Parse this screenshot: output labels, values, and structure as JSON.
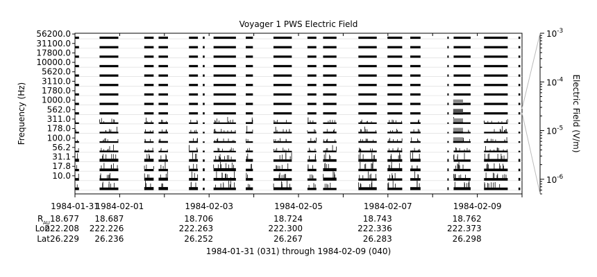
{
  "chart_data": {
    "type": "heatmap",
    "title": "Voyager 1 PWS Electric Field",
    "ylabel": "Frequency (Hz)",
    "colorbar_label": "Electric Field (V/m)",
    "colorbar_scale": "log",
    "colorbar_range": [
      5e-07,
      0.001
    ],
    "colorbar_ticks": [
      {
        "value": 1e-06,
        "mant": "10",
        "exp": "-6"
      },
      {
        "value": 1e-05,
        "mant": "10",
        "exp": "-5"
      },
      {
        "value": 0.0001,
        "mant": "10",
        "exp": "-4"
      },
      {
        "value": 0.001,
        "mant": "10",
        "exp": "-3"
      }
    ],
    "channels_hz": [
      "10.0",
      "17.8",
      "31.1",
      "56.2",
      "100.0",
      "178.0",
      "311.0",
      "562.0",
      "1000.0",
      "1780.0",
      "3110.0",
      "5620.0",
      "10000.0",
      "17800.0",
      "31100.0",
      "56200.0"
    ],
    "x_range": [
      "1984-01-31",
      "1984-02-09 24:00"
    ],
    "x_label_ticks": [
      {
        "day": 0,
        "label": "1984-01-31"
      },
      {
        "day": 1,
        "label": "1984-02-01"
      },
      {
        "day": 3,
        "label": "1984-02-03"
      },
      {
        "day": 5,
        "label": "1984-02-05"
      },
      {
        "day": 7,
        "label": "1984-02-07"
      },
      {
        "day": 9,
        "label": "1984-02-09"
      }
    ],
    "data_segments_days": [
      [
        0.0,
        0.09
      ],
      [
        0.55,
        0.97
      ],
      [
        1.55,
        1.76
      ],
      [
        1.87,
        2.08
      ],
      [
        2.55,
        2.75
      ],
      [
        2.86,
        2.9
      ],
      [
        3.1,
        3.6
      ],
      [
        3.82,
        3.98
      ],
      [
        4.44,
        4.85
      ],
      [
        5.2,
        5.4
      ],
      [
        5.55,
        5.85
      ],
      [
        6.34,
        6.75
      ],
      [
        6.99,
        7.32
      ],
      [
        7.5,
        7.73
      ],
      [
        8.33,
        8.36
      ],
      [
        8.47,
        8.85
      ],
      [
        9.15,
        9.68
      ],
      [
        9.92,
        9.96
      ]
    ],
    "enhanced_interval_days": [
      8.46,
      8.68
    ],
    "ephemeris_labels": [
      "R",
      "AU",
      "Lon",
      "Lat"
    ],
    "ephemeris": [
      {
        "day": 0,
        "r_au": "18.677",
        "lon": "222.208",
        "lat": "26.229"
      },
      {
        "day": 1,
        "r_au": "18.687",
        "lon": "222.226",
        "lat": "26.236"
      },
      {
        "day": 3,
        "r_au": "18.706",
        "lon": "222.263",
        "lat": "26.252"
      },
      {
        "day": 5,
        "r_au": "18.724",
        "lon": "222.300",
        "lat": "26.267"
      },
      {
        "day": 7,
        "r_au": "18.743",
        "lon": "222.336",
        "lat": "26.283"
      },
      {
        "day": 9,
        "r_au": "18.762",
        "lon": "222.373",
        "lat": "26.298"
      }
    ],
    "caption": "1984-01-31 (031) through 1984-02-09 (040)"
  }
}
